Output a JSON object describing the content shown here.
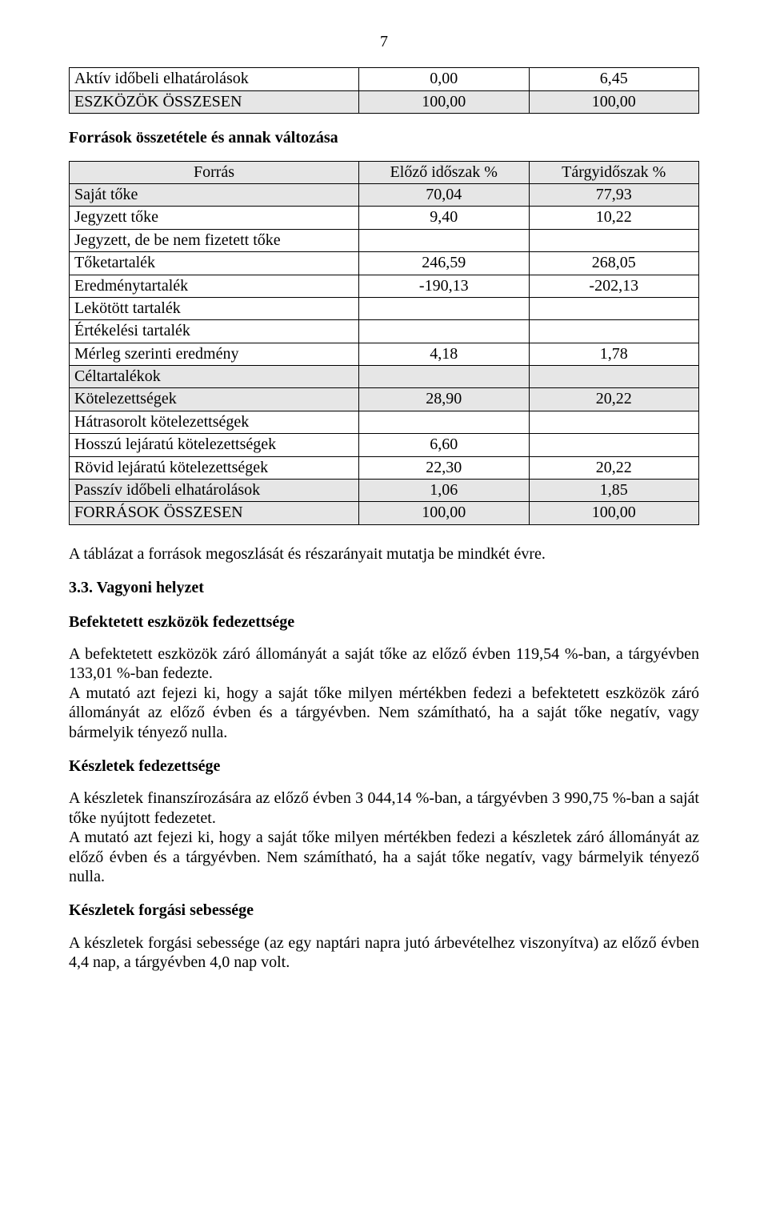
{
  "page_number": "7",
  "shaded_bg": "#e6e6e6",
  "table1": {
    "rows": [
      {
        "label": "Aktív időbeli elhatárolások",
        "c1": "0,00",
        "c2": "6,45",
        "shaded": false
      },
      {
        "label": "ESZKÖZÖK ÖSSZESEN",
        "c1": "100,00",
        "c2": "100,00",
        "shaded": true
      }
    ]
  },
  "section1_title": "Források összetétele és annak változása",
  "table2": {
    "header": {
      "label": "Forrás",
      "c1": "Előző időszak %",
      "c2": "Tárgyidőszak %"
    },
    "rows": [
      {
        "label": "Saját tőke",
        "c1": "70,04",
        "c2": "77,93",
        "shaded": true
      },
      {
        "label": "Jegyzett tőke",
        "c1": "9,40",
        "c2": "10,22",
        "shaded": false
      },
      {
        "label": "Jegyzett, de be nem fizetett tőke",
        "c1": "",
        "c2": "",
        "shaded": false
      },
      {
        "label": "Tőketartalék",
        "c1": "246,59",
        "c2": "268,05",
        "shaded": false
      },
      {
        "label": "Eredménytartalék",
        "c1": "-190,13",
        "c2": "-202,13",
        "shaded": false
      },
      {
        "label": "Lekötött tartalék",
        "c1": "",
        "c2": "",
        "shaded": false
      },
      {
        "label": "Értékelési tartalék",
        "c1": "",
        "c2": "",
        "shaded": false
      },
      {
        "label": "Mérleg szerinti eredmény",
        "c1": "4,18",
        "c2": "1,78",
        "shaded": false
      },
      {
        "label": "Céltartalékok",
        "c1": "",
        "c2": "",
        "shaded": true
      },
      {
        "label": "Kötelezettségek",
        "c1": "28,90",
        "c2": "20,22",
        "shaded": true
      },
      {
        "label": "Hátrasorolt kötelezettségek",
        "c1": "",
        "c2": "",
        "shaded": false
      },
      {
        "label": "Hosszú lejáratú kötelezettségek",
        "c1": "6,60",
        "c2": "",
        "shaded": false
      },
      {
        "label": "Rövid lejáratú kötelezettségek",
        "c1": "22,30",
        "c2": "20,22",
        "shaded": false
      },
      {
        "label": "Passzív időbeli elhatárolások",
        "c1": "1,06",
        "c2": "1,85",
        "shaded": true
      },
      {
        "label": "FORRÁSOK ÖSSZESEN",
        "c1": "100,00",
        "c2": "100,00",
        "shaded": true
      }
    ]
  },
  "para_intro": "A táblázat a források megoszlását és részarányait mutatja be mindkét évre.",
  "section2_title": "3.3. Vagyoni helyzet",
  "sub1_title": "Befektetett eszközök fedezettsége",
  "sub1_p1": "A befektetett eszközök záró állományát a saját tőke az előző évben 119,54 %-ban, a tárgyévben 133,01 %-ban fedezte.",
  "sub1_p2": "A mutató azt fejezi ki, hogy a saját tőke milyen mértékben fedezi a befektetett eszközök záró állományát az előző évben és a tárgyévben. Nem számítható, ha a saját tőke negatív, vagy bármelyik tényező nulla.",
  "sub2_title": "Készletek fedezettsége",
  "sub2_p1": "A készletek finanszírozására az előző évben 3 044,14 %-ban, a tárgyévben 3 990,75 %-ban a saját tőke nyújtott fedezetet.",
  "sub2_p2": "A mutató azt fejezi ki, hogy a saját tőke milyen mértékben fedezi a készletek záró állományát az előző évben és a tárgyévben. Nem számítható, ha a saját tőke negatív, vagy bármelyik tényező nulla.",
  "sub3_title": "Készletek forgási sebessége",
  "sub3_p1": "A készletek forgási sebessége (az egy naptári napra jutó árbevételhez viszonyítva) az előző évben 4,4 nap, a tárgyévben 4,0 nap volt."
}
